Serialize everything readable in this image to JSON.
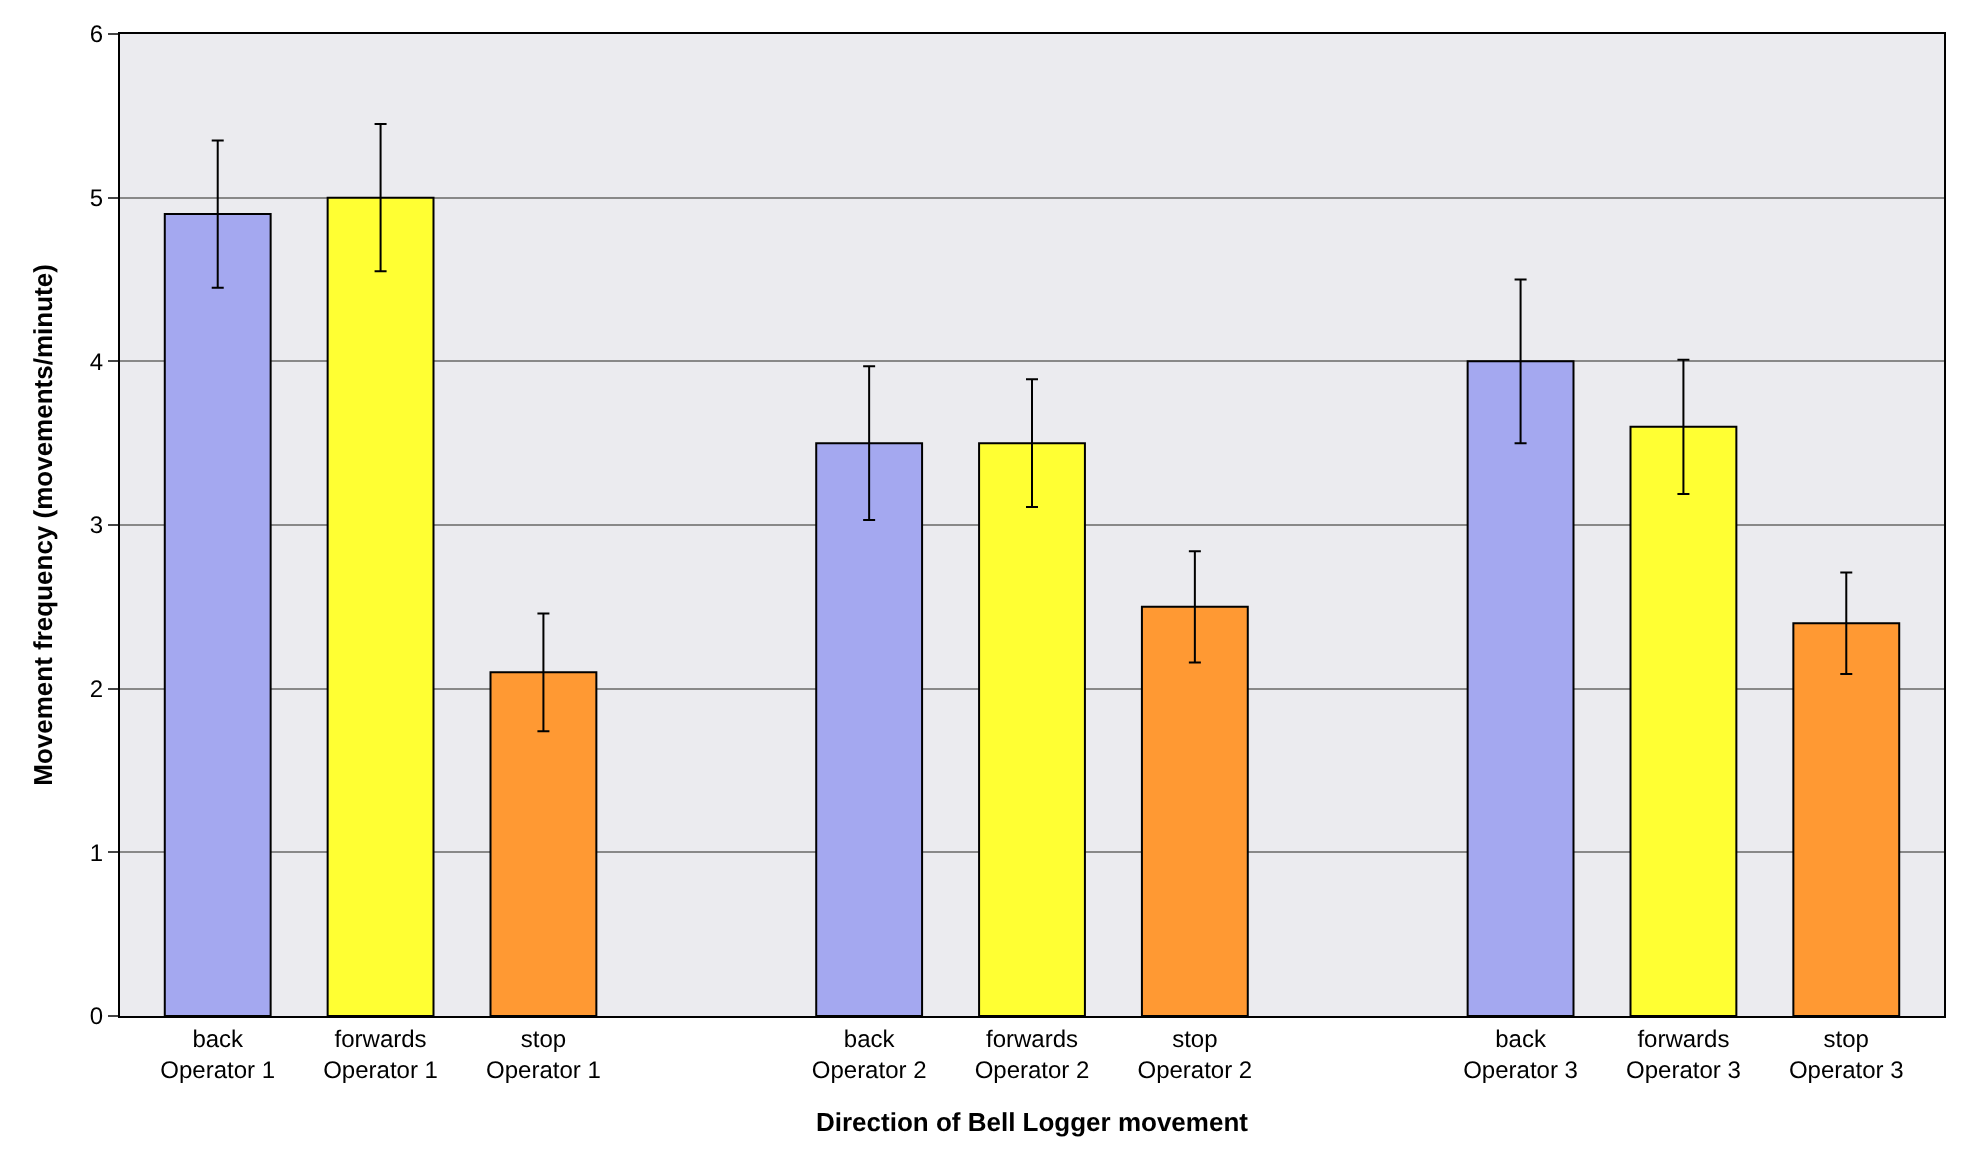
{
  "chart_data": {
    "type": "bar",
    "xlabel": "Direction of Bell Logger movement",
    "ylabel": "Movement frequency (movements/minute)",
    "categories": [
      "back\nOperator 1",
      "forwards\nOperator 1",
      "stop\nOperator 1",
      null,
      "back\nOperator 2",
      "forwards\nOperator 2",
      "stop\nOperator 2",
      null,
      "back\nOperator 3",
      "forwards\nOperator 3",
      "stop\nOperator 3"
    ],
    "values": [
      4.9,
      5.0,
      2.1,
      null,
      3.5,
      3.5,
      2.5,
      null,
      4.0,
      3.6,
      2.4
    ],
    "errors": [
      0.45,
      0.45,
      0.36,
      null,
      0.47,
      0.39,
      0.34,
      null,
      0.5,
      0.41,
      0.31
    ],
    "colors": [
      "#a4a8f0",
      "#ffff33",
      "#ff9933",
      null,
      "#a4a8f0",
      "#ffff33",
      "#ff9933",
      null,
      "#a4a8f0",
      "#ffff33",
      "#ff9933"
    ],
    "ylim": [
      0,
      6
    ],
    "yticks": [
      0,
      1,
      2,
      3,
      4,
      5,
      6
    ],
    "grid": "y",
    "legend": false
  }
}
